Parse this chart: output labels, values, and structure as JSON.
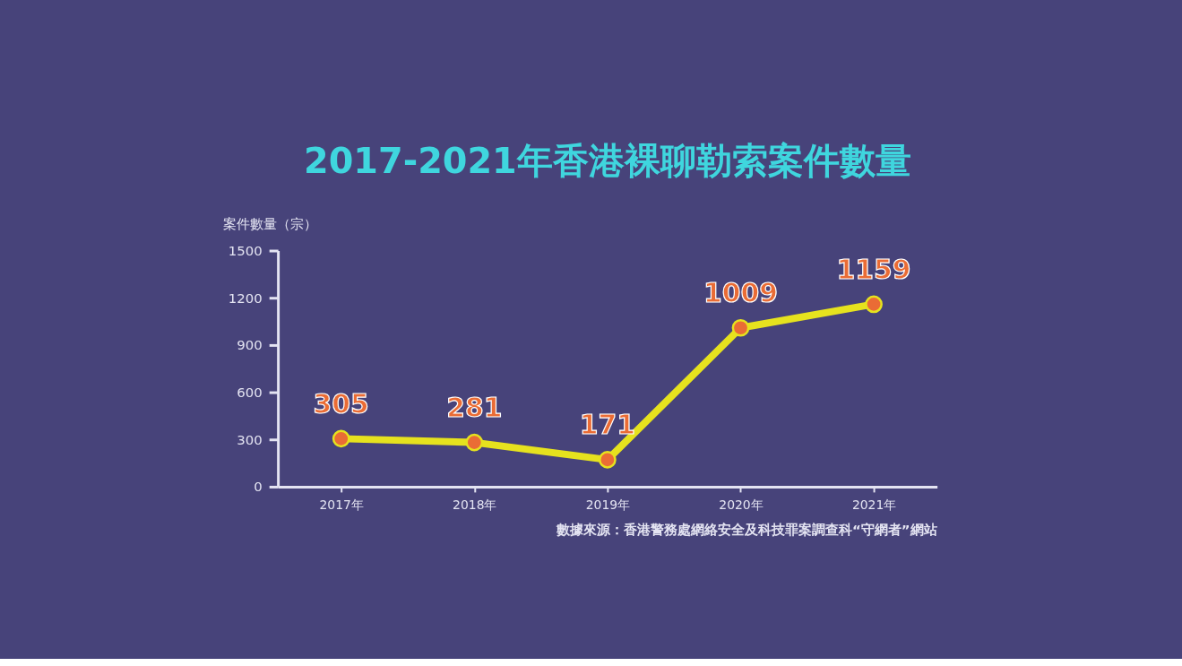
{
  "chart_data": {
    "type": "line",
    "title": "2017-2021年香港裸聊勒索案件數量",
    "ylabel": "案件數量（宗）",
    "categories": [
      "2017年",
      "2018年",
      "2019年",
      "2020年",
      "2021年"
    ],
    "series": [
      {
        "color": "#e6e21e",
        "values": [
          305,
          281,
          171,
          1009,
          1159
        ]
      }
    ],
    "ylim": [
      0,
      1500
    ],
    "yticks": [
      0,
      300,
      600,
      900,
      1200,
      1500
    ],
    "data_labels": true,
    "marker": "circle",
    "line_style": "solid",
    "grid": false,
    "annotations": [
      "數據來源：香港警務處網絡安全及科技罪案調查科“守網者”網站"
    ]
  }
}
